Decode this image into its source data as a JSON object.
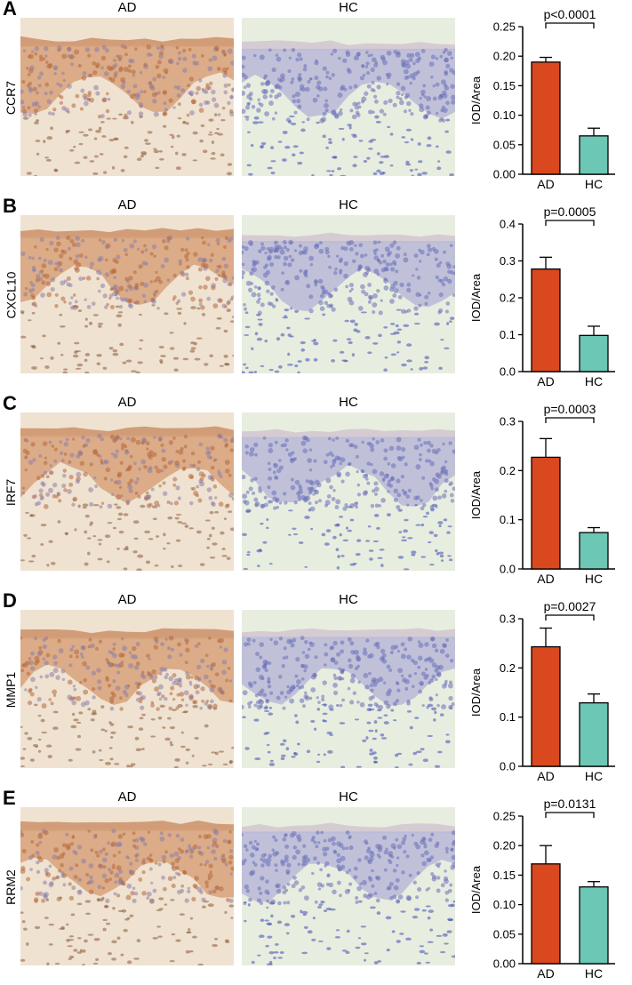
{
  "image_labels": {
    "left": "AD",
    "right": "HC"
  },
  "colors": {
    "AD": "#d9481f",
    "HC": "#6cc7b4"
  },
  "chart_data": [
    {
      "type": "bar",
      "panel": "A",
      "gene": "CCR7",
      "ylabel": "IOD/Area",
      "categories": [
        "AD",
        "HC"
      ],
      "values": [
        0.19,
        0.065
      ],
      "errors": [
        0.008,
        0.013
      ],
      "ylim": [
        0,
        0.25
      ],
      "yticks": [
        "0.00",
        "0.05",
        "0.10",
        "0.15",
        "0.20",
        "0.25"
      ],
      "pvalue": "p<0.0001"
    },
    {
      "type": "bar",
      "panel": "B",
      "gene": "CXCL10",
      "ylabel": "IOD/Area",
      "categories": [
        "AD",
        "HC"
      ],
      "values": [
        0.278,
        0.098
      ],
      "errors": [
        0.032,
        0.025
      ],
      "ylim": [
        0,
        0.4
      ],
      "yticks": [
        "0.0",
        "0.1",
        "0.2",
        "0.3",
        "0.4"
      ],
      "pvalue": "p=0.0005"
    },
    {
      "type": "bar",
      "panel": "C",
      "gene": "IRF7",
      "ylabel": "IOD/Area",
      "categories": [
        "AD",
        "HC"
      ],
      "values": [
        0.227,
        0.074
      ],
      "errors": [
        0.038,
        0.01
      ],
      "ylim": [
        0,
        0.3
      ],
      "yticks": [
        "0.0",
        "0.1",
        "0.2",
        "0.3"
      ],
      "pvalue": "p=0.0003"
    },
    {
      "type": "bar",
      "panel": "D",
      "gene": "MMP1",
      "ylabel": "IOD/Area",
      "categories": [
        "AD",
        "HC"
      ],
      "values": [
        0.243,
        0.129
      ],
      "errors": [
        0.038,
        0.018
      ],
      "ylim": [
        0,
        0.3
      ],
      "yticks": [
        "0.0",
        "0.1",
        "0.2",
        "0.3"
      ],
      "pvalue": "p=0.0027"
    },
    {
      "type": "bar",
      "panel": "E",
      "gene": "RRM2",
      "ylabel": "IOD/Area",
      "categories": [
        "AD",
        "HC"
      ],
      "values": [
        0.169,
        0.13
      ],
      "errors": [
        0.031,
        0.009
      ],
      "ylim": [
        0,
        0.25
      ],
      "yticks": [
        "0.00",
        "0.05",
        "0.10",
        "0.15",
        "0.20",
        "0.25"
      ],
      "pvalue": "p=0.0131"
    }
  ]
}
